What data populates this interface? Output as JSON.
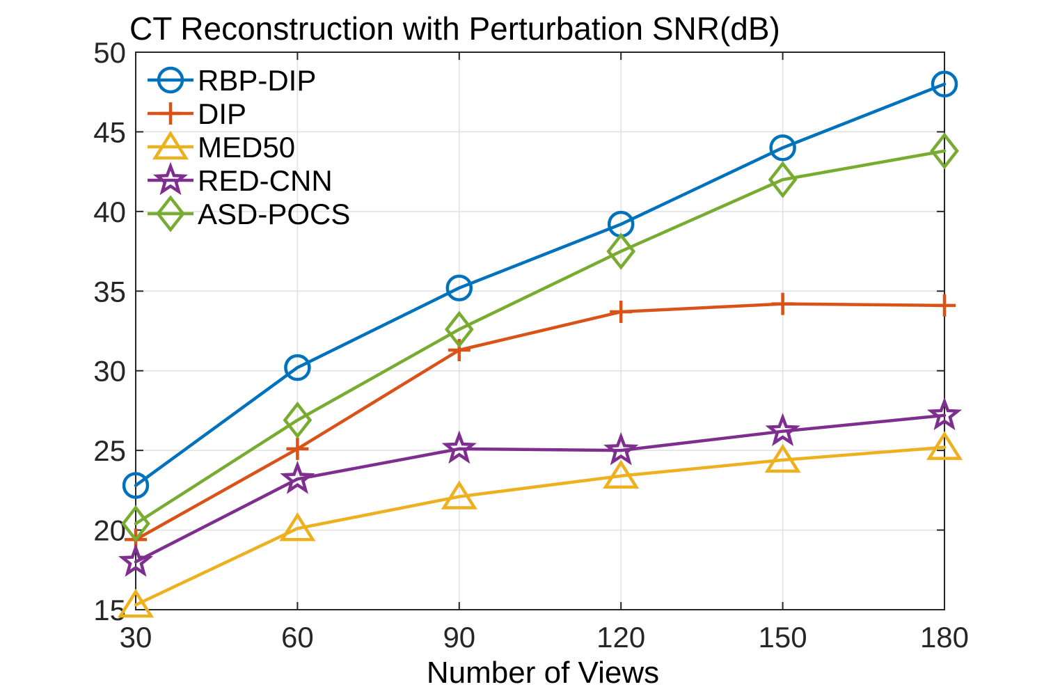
{
  "chart_data": {
    "type": "line",
    "title": "CT Reconstruction with Perturbation SNR(dB)",
    "xlabel": "Number of Views",
    "ylabel": "",
    "x": [
      30,
      60,
      90,
      120,
      150,
      180
    ],
    "xlim": [
      30,
      180
    ],
    "ylim": [
      15,
      50
    ],
    "x_ticks": [
      30,
      60,
      90,
      120,
      150,
      180
    ],
    "y_ticks": [
      15,
      20,
      25,
      30,
      35,
      40,
      45,
      50
    ],
    "grid": true,
    "legend_position": "top-left-inside",
    "legend_entries": [
      "RBP-DIP",
      "DIP",
      "MED50",
      "RED-CNN",
      "ASD-POCS"
    ],
    "series": [
      {
        "name": "RBP-DIP",
        "color": "#0072BD",
        "marker": "circle",
        "values": [
          22.8,
          30.2,
          35.2,
          39.2,
          44.0,
          48.0
        ]
      },
      {
        "name": "DIP",
        "color": "#D95319",
        "marker": "plus",
        "values": [
          19.4,
          25.1,
          31.3,
          33.7,
          34.2,
          34.1
        ]
      },
      {
        "name": "MED50",
        "color": "#EDB120",
        "marker": "triangle-up",
        "values": [
          15.3,
          20.1,
          22.1,
          23.4,
          24.4,
          25.2
        ]
      },
      {
        "name": "RED-CNN",
        "color": "#7E2F8E",
        "marker": "pentagram",
        "values": [
          18.0,
          23.2,
          25.1,
          25.0,
          26.2,
          27.2
        ]
      },
      {
        "name": "ASD-POCS",
        "color": "#77AC30",
        "marker": "diamond",
        "values": [
          20.4,
          26.9,
          32.6,
          37.5,
          42.0,
          43.8
        ]
      }
    ],
    "axis_color": "#262626",
    "grid_color": "#E0E0E0",
    "background": "#FFFFFF"
  }
}
